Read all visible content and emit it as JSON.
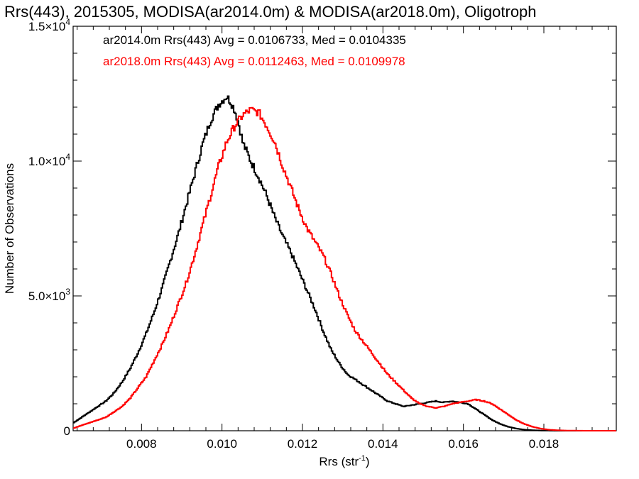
{
  "chart_data": {
    "type": "line",
    "title": "Rrs(443), 2015305, MODISA(ar2014.0m) & MODISA(ar2018.0m), Oligotroph",
    "xlabel_main": "Rrs (str",
    "xlabel_sup": "-1",
    "xlabel_end": ")",
    "ylabel": "Number of Observations",
    "xlim": [
      0.0063,
      0.0198
    ],
    "ylim": [
      0,
      15000
    ],
    "x_ticks": [
      0.008,
      0.01,
      0.012,
      0.014,
      0.016,
      0.018
    ],
    "x_tick_labels": [
      "0.008",
      "0.010",
      "0.012",
      "0.014",
      "0.016",
      "0.018"
    ],
    "y_ticks": [
      0,
      5000,
      10000,
      15000
    ],
    "y_tick_labels": [
      {
        "mant": "0",
        "exp": ""
      },
      {
        "mant": "5.0×10",
        "exp": "3"
      },
      {
        "mant": "1.0×10",
        "exp": "4"
      },
      {
        "mant": "1.5×10",
        "exp": "4"
      }
    ],
    "annotations": [
      "ar2014.0m Rrs(443) Avg = 0.0106733, Med = 0.0104335",
      "ar2018.0m Rrs(443) Avg = 0.0112463, Med = 0.0109978"
    ],
    "series": [
      {
        "color": "#000000",
        "x": [
          0.0063,
          0.0065,
          0.0067,
          0.0069,
          0.0071,
          0.0073,
          0.0075,
          0.0077,
          0.0079,
          0.0081,
          0.0083,
          0.0085,
          0.0087,
          0.0089,
          0.0091,
          0.0093,
          0.0095,
          0.0097,
          0.0099,
          0.0101,
          0.0102,
          0.0103,
          0.0104,
          0.0105,
          0.0107,
          0.0109,
          0.0111,
          0.0113,
          0.0115,
          0.0117,
          0.0119,
          0.0121,
          0.0123,
          0.0125,
          0.0127,
          0.0129,
          0.0131,
          0.0133,
          0.0135,
          0.0137,
          0.0139,
          0.0141,
          0.0143,
          0.0145,
          0.0147,
          0.0149,
          0.0151,
          0.0153,
          0.0155,
          0.0157,
          0.0159,
          0.0161,
          0.0163,
          0.0165,
          0.0167,
          0.0169,
          0.0171,
          0.0173,
          0.0175,
          0.0177,
          0.0179,
          0.0181,
          0.0183,
          0.0185,
          0.019,
          0.0198
        ],
        "y": [
          300,
          500,
          700,
          900,
          1100,
          1400,
          1800,
          2300,
          2900,
          3600,
          4400,
          5300,
          6300,
          7300,
          8400,
          9500,
          10600,
          11500,
          12100,
          12400,
          12200,
          11900,
          11400,
          10700,
          10000,
          9400,
          8700,
          7900,
          7200,
          6600,
          5900,
          5200,
          4500,
          3700,
          3000,
          2500,
          2100,
          1900,
          1700,
          1500,
          1300,
          1100,
          1000,
          900,
          950,
          1000,
          1050,
          1100,
          1050,
          1100,
          1050,
          1000,
          800,
          600,
          400,
          250,
          150,
          80,
          40,
          20,
          10,
          5,
          0,
          0,
          0,
          0
        ]
      },
      {
        "color": "#ff0000",
        "x": [
          0.0063,
          0.0065,
          0.0067,
          0.0069,
          0.0071,
          0.0073,
          0.0075,
          0.0077,
          0.0079,
          0.0081,
          0.0083,
          0.0085,
          0.0087,
          0.0089,
          0.0091,
          0.0093,
          0.0095,
          0.0097,
          0.0099,
          0.0101,
          0.0103,
          0.0105,
          0.0107,
          0.0109,
          0.0111,
          0.0113,
          0.0115,
          0.0117,
          0.0119,
          0.0121,
          0.0123,
          0.0125,
          0.0127,
          0.0129,
          0.0131,
          0.0133,
          0.0135,
          0.0137,
          0.0139,
          0.0141,
          0.0143,
          0.0145,
          0.0147,
          0.0149,
          0.0151,
          0.0153,
          0.0155,
          0.0157,
          0.0159,
          0.0161,
          0.0163,
          0.0165,
          0.0167,
          0.0169,
          0.0171,
          0.0173,
          0.0175,
          0.0177,
          0.0179,
          0.0181,
          0.0183,
          0.0185,
          0.019,
          0.0198
        ],
        "y": [
          100,
          200,
          300,
          400,
          500,
          700,
          900,
          1200,
          1600,
          2000,
          2600,
          3200,
          3900,
          4700,
          5500,
          6500,
          7600,
          8700,
          9800,
          10700,
          11300,
          11700,
          11900,
          11800,
          11300,
          10700,
          9800,
          9000,
          8200,
          7500,
          7000,
          6500,
          5800,
          5000,
          4300,
          3700,
          3300,
          2900,
          2500,
          2100,
          1800,
          1500,
          1200,
          1000,
          900,
          850,
          900,
          1000,
          1050,
          1100,
          1150,
          1100,
          1000,
          800,
          600,
          400,
          250,
          150,
          80,
          40,
          20,
          10,
          0,
          0
        ]
      }
    ]
  }
}
